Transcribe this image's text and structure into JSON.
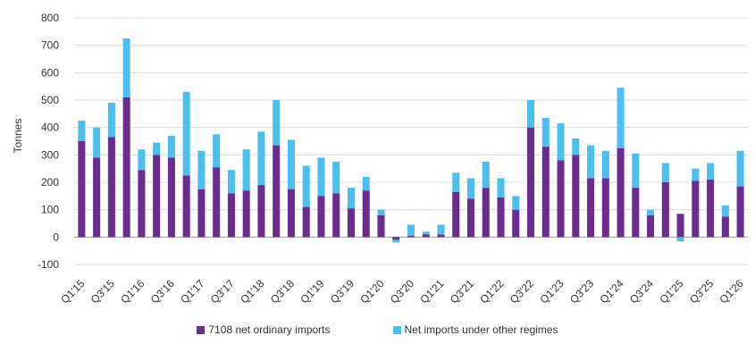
{
  "chart_data": {
    "type": "bar",
    "stacked": true,
    "ylabel": "Tonnes",
    "xlabel": "",
    "ylim": [
      -100,
      800
    ],
    "yticks": [
      -100,
      0,
      100,
      200,
      300,
      400,
      500,
      600,
      700,
      800
    ],
    "grid": true,
    "legend_position": "bottom",
    "categories": [
      "Q1'15",
      "Q2'15",
      "Q3'15",
      "Q4'15",
      "Q1'16",
      "Q2'16",
      "Q3'16",
      "Q4'16",
      "Q1'17",
      "Q2'17",
      "Q3'17",
      "Q4'17",
      "Q1'18",
      "Q2'18",
      "Q3'18",
      "Q4'18",
      "Q1'19",
      "Q2'19",
      "Q3'19",
      "Q4'19",
      "Q1'20",
      "Q2'20",
      "Q3'20",
      "Q4'20",
      "Q1'21",
      "Q2'21",
      "Q3'21",
      "Q4'21",
      "Q1'22",
      "Q2'22",
      "Q3'22",
      "Q4'22",
      "Q1'23",
      "Q2'23",
      "Q3'23",
      "Q4'23",
      "Q1'24",
      "Q2'24",
      "Q3'24",
      "Q4'24",
      "Q1'25",
      "Q2'25",
      "Q3'25",
      "Q4'25",
      "Q1'26"
    ],
    "x_tick_labels": [
      "Q1'15",
      "Q3'15",
      "Q1'16",
      "Q3'16",
      "Q1'17",
      "Q3'17",
      "Q1'18",
      "Q3'18",
      "Q1'19",
      "Q3'19",
      "Q1'20",
      "Q3'20",
      "Q1'21",
      "Q3'21",
      "Q1'22",
      "Q3'22",
      "Q1'23",
      "Q3'23",
      "Q1'24",
      "Q3'24",
      "Q1'25",
      "Q3'25",
      "Q1'26"
    ],
    "series": [
      {
        "name": "7108 net ordinary imports",
        "color": "#6a2c8f",
        "values": [
          350,
          290,
          365,
          510,
          245,
          300,
          290,
          225,
          175,
          255,
          160,
          170,
          190,
          335,
          175,
          110,
          150,
          160,
          105,
          170,
          80,
          -10,
          5,
          10,
          10,
          165,
          140,
          180,
          145,
          100,
          400,
          330,
          280,
          300,
          215,
          215,
          325,
          180,
          80,
          200,
          85,
          205,
          210,
          75,
          185
        ]
      },
      {
        "name": "Net imports under other regimes",
        "color": "#4dbfee",
        "values": [
          75,
          110,
          125,
          215,
          75,
          45,
          80,
          305,
          140,
          120,
          85,
          150,
          195,
          165,
          180,
          150,
          140,
          115,
          75,
          50,
          20,
          -10,
          40,
          10,
          35,
          70,
          75,
          95,
          70,
          50,
          100,
          105,
          135,
          60,
          120,
          100,
          220,
          125,
          20,
          70,
          -15,
          45,
          60,
          40,
          130
        ]
      }
    ]
  }
}
